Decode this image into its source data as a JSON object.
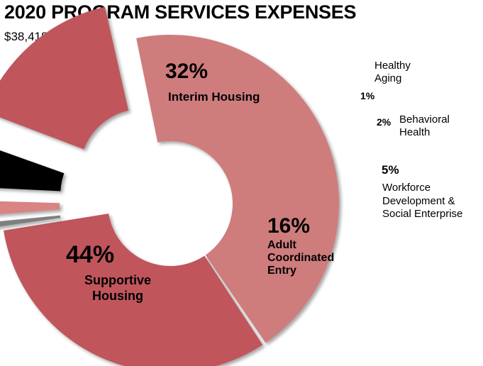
{
  "chart_data": {
    "type": "pie",
    "title": "2020 PROGRAM SERVICES EXPENSES",
    "subtitle": "$38,418,835",
    "series": [
      {
        "name": "Interim Housing",
        "value": 32,
        "value_label": "32%",
        "label_lines": [
          "Interim Housing"
        ],
        "color": "#c0575b"
      },
      {
        "name": "Healthy Aging",
        "value": 1,
        "value_label": "1%",
        "label_lines": [
          "Healthy",
          "Aging"
        ],
        "color": "#7f7f7f"
      },
      {
        "name": "Behavioral Health",
        "value": 2,
        "value_label": "2%",
        "label_lines": [
          "Behavioral",
          "Health"
        ],
        "color": "#d98383"
      },
      {
        "name": "Workforce Development & Social Enterprise",
        "value": 5,
        "value_label": "5%",
        "label_lines": [
          "Workforce",
          "Development &",
          "Social Enterprise"
        ],
        "color": "#000000"
      },
      {
        "name": "Adult Coordinated Entry",
        "value": 16,
        "value_label": "16%",
        "label_lines": [
          "Adult",
          "Coordinated",
          "Entry"
        ],
        "color": "#c0575b"
      },
      {
        "name": "Supportive Housing",
        "value": 44,
        "value_label": "44%",
        "label_lines": [
          "Supportive",
          "Housing"
        ],
        "color": "#cf7b7d"
      }
    ],
    "legend": "none",
    "grid": false,
    "data_labels": "percent"
  }
}
